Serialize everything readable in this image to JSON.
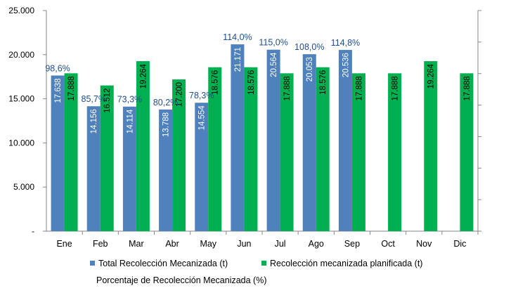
{
  "chart_data": {
    "type": "bar",
    "categories": [
      "Ene",
      "Feb",
      "Mar",
      "Abr",
      "May",
      "Jun",
      "Jul",
      "Ago",
      "Sep",
      "Oct",
      "Nov",
      "Dic"
    ],
    "series": [
      {
        "name": "Total Recolección Mecanizada (t)",
        "color": "#4f81bd",
        "values": [
          17638,
          14156,
          14114,
          13788,
          14554,
          21171,
          20564,
          20053,
          20536,
          null,
          null,
          null
        ],
        "labels": [
          "17.638",
          "14.156",
          "14.114",
          "13.788",
          "14.554",
          "21.171",
          "20.564",
          "20.053",
          "20.536",
          "",
          "",
          ""
        ]
      },
      {
        "name": "Recolección mecanizada planificada (t)",
        "color": "#00b050",
        "values": [
          17888,
          16512,
          19264,
          17200,
          18576,
          18576,
          17888,
          18576,
          17888,
          17888,
          19264,
          17888
        ],
        "labels": [
          "17.888",
          "16.512",
          "19.264",
          "17.200",
          "18.576",
          "18.576",
          "17.888",
          "18.576",
          "17.888",
          "17.888",
          "19.264",
          "17.888"
        ]
      }
    ],
    "percentages": {
      "name": "Porcentaje de Recolección Mecanizada (%)",
      "color": "#1f4e8c",
      "values": [
        98.6,
        85.7,
        73.3,
        80.2,
        78.3,
        114.0,
        115.0,
        108.0,
        114.8,
        null,
        null,
        null
      ],
      "labels": [
        "98,6%",
        "85,7%",
        "73,3%",
        "80,2%",
        "78,3%",
        "114,0%",
        "115,0%",
        "108,0%",
        "114,8%",
        "",
        "",
        ""
      ]
    },
    "y_axis": {
      "ylim": [
        0,
        25000
      ],
      "ticks": [
        0,
        5000,
        10000,
        15000,
        20000,
        25000
      ],
      "tick_labels": [
        "-",
        "5.000",
        "10.000",
        "15.000",
        "20.000",
        "25.000"
      ]
    },
    "grid": false,
    "legend_position": "bottom"
  }
}
